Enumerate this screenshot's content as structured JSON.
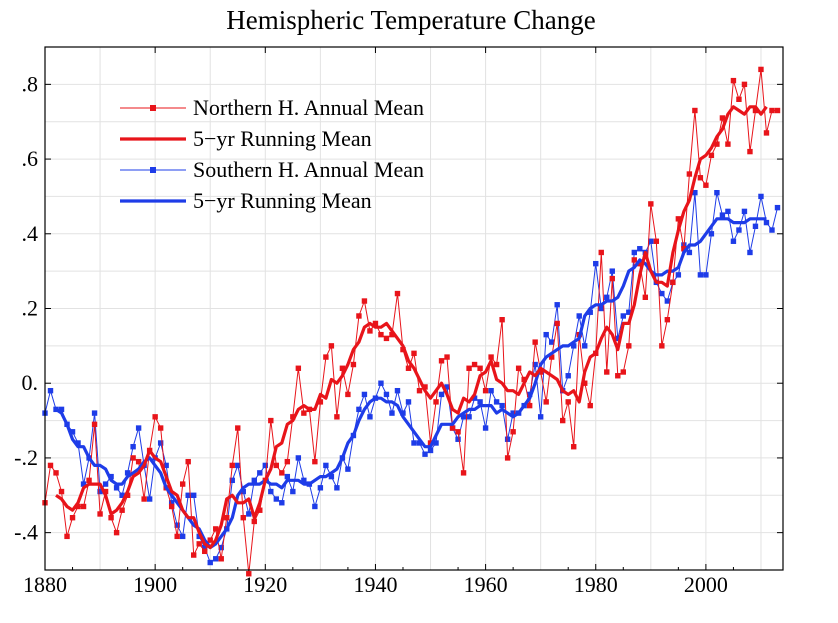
{
  "chart_data": {
    "type": "line",
    "title": "Hemispheric Temperature Change",
    "xlabel": "",
    "ylabel": "",
    "xlim": [
      1880,
      2014
    ],
    "ylim": [
      -0.5,
      0.9
    ],
    "x_ticks": [
      1880,
      1900,
      1920,
      1940,
      1960,
      1980,
      2000
    ],
    "x_tick_labels": [
      "1880",
      "1900",
      "1920",
      "1940",
      "1960",
      "1980",
      "2000"
    ],
    "y_ticks": [
      -0.4,
      -0.2,
      0.0,
      0.2,
      0.4,
      0.6,
      0.8
    ],
    "y_tick_labels": [
      "-.4",
      "-.2",
      "0.",
      ".2",
      ".4",
      ".6",
      ".8"
    ],
    "grid": true,
    "legend_position": "top-left",
    "colors": {
      "red": "#e8141a",
      "blue": "#1e3ce8"
    },
    "x": [
      1880,
      1881,
      1882,
      1883,
      1884,
      1885,
      1886,
      1887,
      1888,
      1889,
      1890,
      1891,
      1892,
      1893,
      1894,
      1895,
      1896,
      1897,
      1898,
      1899,
      1900,
      1901,
      1902,
      1903,
      1904,
      1905,
      1906,
      1907,
      1908,
      1909,
      1910,
      1911,
      1912,
      1913,
      1914,
      1915,
      1916,
      1917,
      1918,
      1919,
      1920,
      1921,
      1922,
      1923,
      1924,
      1925,
      1926,
      1927,
      1928,
      1929,
      1930,
      1931,
      1932,
      1933,
      1934,
      1935,
      1936,
      1937,
      1938,
      1939,
      1940,
      1941,
      1942,
      1943,
      1944,
      1945,
      1946,
      1947,
      1948,
      1949,
      1950,
      1951,
      1952,
      1953,
      1954,
      1955,
      1956,
      1957,
      1958,
      1959,
      1960,
      1961,
      1962,
      1963,
      1964,
      1965,
      1966,
      1967,
      1968,
      1969,
      1970,
      1971,
      1972,
      1973,
      1974,
      1975,
      1976,
      1977,
      1978,
      1979,
      1980,
      1981,
      1982,
      1983,
      1984,
      1985,
      1986,
      1987,
      1988,
      1989,
      1990,
      1991,
      1992,
      1993,
      1994,
      1995,
      1996,
      1997,
      1998,
      1999,
      2000,
      2001,
      2002,
      2003,
      2004,
      2005,
      2006,
      2007,
      2008,
      2009,
      2010,
      2011,
      2012,
      2013
    ],
    "series": [
      {
        "name": "Northern H. Annual Mean",
        "color": "#e8141a",
        "style": "thin-line-square-markers",
        "values": [
          -0.32,
          -0.22,
          -0.24,
          -0.29,
          -0.41,
          -0.36,
          -0.33,
          -0.33,
          -0.26,
          -0.11,
          -0.35,
          -0.29,
          -0.36,
          -0.4,
          -0.34,
          -0.3,
          -0.2,
          -0.21,
          -0.31,
          -0.18,
          -0.09,
          -0.12,
          -0.28,
          -0.33,
          -0.41,
          -0.27,
          -0.21,
          -0.46,
          -0.43,
          -0.45,
          -0.42,
          -0.39,
          -0.47,
          -0.36,
          -0.22,
          -0.12,
          -0.36,
          -0.51,
          -0.37,
          -0.34,
          -0.26,
          -0.1,
          -0.22,
          -0.24,
          -0.21,
          -0.09,
          0.04,
          -0.08,
          -0.07,
          -0.21,
          -0.05,
          0.07,
          0.1,
          -0.09,
          0.04,
          -0.03,
          0.05,
          0.18,
          0.22,
          0.14,
          0.16,
          0.13,
          0.12,
          0.13,
          0.24,
          0.09,
          0.04,
          0.08,
          -0.02,
          -0.01,
          -0.16,
          -0.05,
          0.06,
          0.07,
          -0.12,
          -0.13,
          -0.24,
          0.04,
          0.05,
          0.04,
          -0.02,
          0.07,
          0.05,
          0.17,
          -0.2,
          -0.13,
          0.04,
          0.01,
          -0.06,
          0.11,
          0.03,
          -0.05,
          0.07,
          0.16,
          -0.1,
          -0.05,
          -0.17,
          0.13,
          0.0,
          -0.06,
          0.08,
          0.35,
          0.03,
          0.28,
          0.02,
          0.03,
          0.1,
          0.33,
          0.32,
          0.23,
          0.48,
          0.38,
          0.1,
          0.17,
          0.27,
          0.44,
          0.36,
          0.56,
          0.73,
          0.55,
          0.53,
          0.61,
          0.64,
          0.71,
          0.64,
          0.81,
          0.76,
          0.8,
          0.62,
          0.73,
          0.84,
          0.67,
          0.73,
          0.73
        ]
      },
      {
        "name": "5-yr Running Mean",
        "color": "#e8141a",
        "style": "thick-line",
        "values": [
          null,
          null,
          -0.3,
          -0.31,
          -0.33,
          -0.34,
          -0.32,
          -0.28,
          -0.27,
          -0.27,
          -0.27,
          -0.3,
          -0.35,
          -0.34,
          -0.32,
          -0.29,
          -0.25,
          -0.24,
          -0.22,
          -0.18,
          -0.2,
          -0.21,
          -0.25,
          -0.29,
          -0.3,
          -0.34,
          -0.36,
          -0.36,
          -0.4,
          -0.43,
          -0.44,
          -0.42,
          -0.38,
          -0.31,
          -0.3,
          -0.32,
          -0.32,
          -0.31,
          -0.36,
          -0.32,
          -0.26,
          -0.23,
          -0.17,
          -0.16,
          -0.11,
          -0.1,
          -0.07,
          -0.06,
          -0.07,
          -0.07,
          -0.03,
          -0.04,
          0.01,
          0.0,
          0.02,
          0.05,
          0.09,
          0.11,
          0.15,
          0.16,
          0.15,
          0.15,
          0.16,
          0.14,
          0.12,
          0.1,
          0.06,
          0.04,
          0.01,
          -0.02,
          -0.04,
          -0.02,
          0.0,
          -0.03,
          -0.07,
          -0.08,
          -0.04,
          -0.05,
          -0.03,
          0.02,
          0.03,
          0.06,
          0.01,
          0.0,
          -0.02,
          -0.02,
          -0.03,
          0.0,
          0.03,
          0.02,
          0.04,
          0.03,
          0.02,
          0.01,
          -0.02,
          -0.03,
          -0.02,
          -0.05,
          0.03,
          0.07,
          0.08,
          0.12,
          0.15,
          0.13,
          0.09,
          0.16,
          0.16,
          0.21,
          0.29,
          0.35,
          0.3,
          0.27,
          0.27,
          0.26,
          0.35,
          0.41,
          0.46,
          0.49,
          0.55,
          0.6,
          0.61,
          0.63,
          0.66,
          0.68,
          0.72,
          0.74,
          0.73,
          0.72,
          0.74,
          0.74,
          0.72,
          0.74,
          null,
          null
        ]
      },
      {
        "name": "Southern H. Annual Mean",
        "color": "#1e3ce8",
        "style": "thin-line-square-markers",
        "values": [
          -0.08,
          -0.02,
          -0.07,
          -0.07,
          -0.11,
          -0.13,
          -0.16,
          -0.27,
          -0.2,
          -0.08,
          -0.29,
          -0.27,
          -0.25,
          -0.28,
          -0.3,
          -0.24,
          -0.17,
          -0.12,
          -0.22,
          -0.31,
          -0.2,
          -0.16,
          -0.22,
          -0.32,
          -0.38,
          -0.41,
          -0.3,
          -0.3,
          -0.41,
          -0.44,
          -0.48,
          -0.47,
          -0.44,
          -0.39,
          -0.26,
          -0.22,
          -0.29,
          -0.35,
          -0.26,
          -0.24,
          -0.22,
          -0.29,
          -0.31,
          -0.32,
          -0.25,
          -0.29,
          -0.2,
          -0.26,
          -0.27,
          -0.33,
          -0.28,
          -0.22,
          -0.25,
          -0.28,
          -0.2,
          -0.23,
          -0.14,
          -0.07,
          -0.03,
          -0.09,
          -0.04,
          0.0,
          -0.03,
          -0.08,
          -0.02,
          -0.08,
          -0.05,
          -0.16,
          -0.16,
          -0.19,
          -0.18,
          -0.16,
          -0.03,
          -0.01,
          -0.12,
          -0.15,
          -0.09,
          -0.09,
          -0.04,
          -0.05,
          -0.12,
          -0.02,
          -0.05,
          -0.06,
          -0.15,
          -0.08,
          -0.08,
          -0.06,
          -0.03,
          0.05,
          -0.09,
          0.13,
          0.11,
          0.21,
          -0.02,
          0.02,
          0.1,
          0.18,
          0.1,
          0.19,
          0.32,
          0.2,
          0.23,
          0.3,
          0.12,
          0.18,
          0.19,
          0.35,
          0.36,
          0.35,
          0.38,
          0.27,
          0.24,
          0.22,
          0.27,
          0.29,
          0.37,
          0.35,
          0.51,
          0.29,
          0.29,
          0.4,
          0.51,
          0.45,
          0.46,
          0.38,
          0.41,
          0.46,
          0.35,
          0.42,
          0.5,
          0.43,
          0.41,
          0.47
        ]
      },
      {
        "name": "5-yr Running Mean",
        "color": "#1e3ce8",
        "style": "thick-line",
        "values": [
          null,
          null,
          -0.07,
          -0.08,
          -0.11,
          -0.15,
          -0.17,
          -0.17,
          -0.2,
          -0.22,
          -0.22,
          -0.23,
          -0.26,
          -0.27,
          -0.27,
          -0.25,
          -0.24,
          -0.23,
          -0.21,
          -0.2,
          -0.22,
          -0.24,
          -0.28,
          -0.3,
          -0.32,
          -0.34,
          -0.36,
          -0.38,
          -0.39,
          -0.42,
          -0.44,
          -0.43,
          -0.41,
          -0.39,
          -0.36,
          -0.3,
          -0.28,
          -0.27,
          -0.27,
          -0.27,
          -0.26,
          -0.27,
          -0.27,
          -0.28,
          -0.26,
          -0.26,
          -0.26,
          -0.27,
          -0.27,
          -0.26,
          -0.25,
          -0.25,
          -0.24,
          -0.23,
          -0.2,
          -0.16,
          -0.14,
          -0.1,
          -0.07,
          -0.05,
          -0.04,
          -0.04,
          -0.05,
          -0.05,
          -0.06,
          -0.09,
          -0.11,
          -0.13,
          -0.15,
          -0.17,
          -0.17,
          -0.14,
          -0.11,
          -0.11,
          -0.11,
          -0.09,
          -0.08,
          -0.07,
          -0.07,
          -0.06,
          -0.06,
          -0.06,
          -0.08,
          -0.07,
          -0.08,
          -0.09,
          -0.08,
          -0.06,
          -0.04,
          0.0,
          0.05,
          0.07,
          0.08,
          0.09,
          0.1,
          0.1,
          0.11,
          0.12,
          0.18,
          0.2,
          0.21,
          0.21,
          0.22,
          0.22,
          0.23,
          0.26,
          0.3,
          0.31,
          0.33,
          0.32,
          0.3,
          0.29,
          0.29,
          0.3,
          0.3,
          0.31,
          0.35,
          0.37,
          0.37,
          0.38,
          0.4,
          0.42,
          0.44,
          0.44,
          0.44,
          0.43,
          0.43,
          0.43,
          0.44,
          0.44,
          0.44,
          0.44,
          null,
          null
        ]
      }
    ],
    "legend": [
      {
        "label": "Northern H. Annual Mean",
        "color": "#e8141a",
        "marker": true
      },
      {
        "label": "5−yr Running Mean",
        "color": "#e8141a",
        "marker": false
      },
      {
        "label": "Southern H. Annual Mean",
        "color": "#1e3ce8",
        "marker": true
      },
      {
        "label": "5−yr Running Mean",
        "color": "#1e3ce8",
        "marker": false
      }
    ]
  }
}
